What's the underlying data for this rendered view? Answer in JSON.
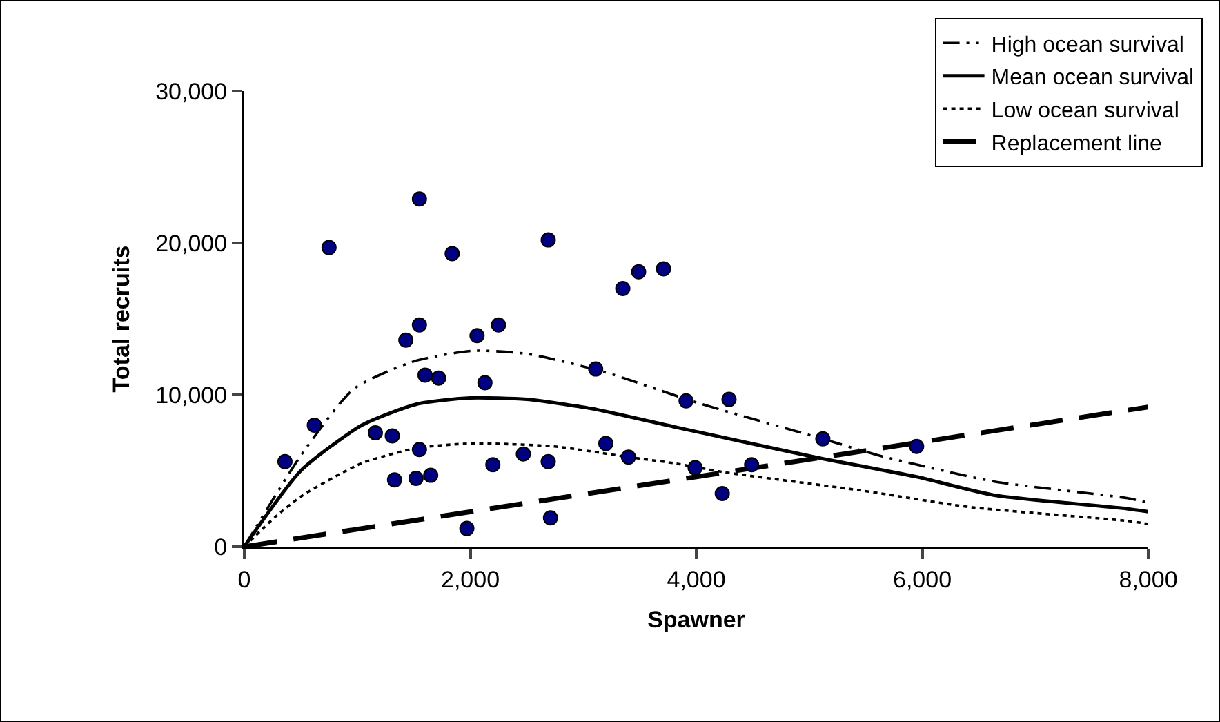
{
  "chart_data": {
    "type": "scatter",
    "xlabel": "Spawner",
    "ylabel": "Total recruits",
    "xlim": [
      0,
      8000
    ],
    "ylim": [
      0,
      30000
    ],
    "xticks": [
      0,
      {
        "value": 2000,
        "label": "2,000"
      },
      {
        "value": 4000,
        "label": "4,000"
      },
      {
        "value": 6000,
        "label": "6,000"
      },
      {
        "value": 8000,
        "label": "8,000"
      }
    ],
    "yticks": [
      0,
      {
        "value": 10000,
        "label": "10,000"
      },
      {
        "value": 20000,
        "label": "20,000"
      },
      {
        "value": 30000,
        "label": "30,000"
      }
    ],
    "grid": false,
    "legend": "top right",
    "series": [
      {
        "color": "#000080",
        "marker": "circle",
        "x": [
          360,
          620,
          750,
          1550,
          1840,
          2690,
          3350,
          3490,
          3710,
          1550,
          1430,
          2060,
          2250,
          1600,
          1720,
          2130,
          3110,
          1160,
          1310,
          1550,
          1330,
          1520,
          1650,
          2200,
          2470,
          2690,
          3200,
          3400,
          1970,
          2710,
          3910,
          4290,
          5120,
          5950,
          3990,
          4490,
          4230
        ],
        "values": [
          5600,
          8000,
          19700,
          22900,
          19300,
          20200,
          17000,
          18100,
          18300,
          14600,
          13600,
          13900,
          14600,
          11300,
          11100,
          10800,
          11700,
          7500,
          7300,
          6400,
          4400,
          4500,
          4700,
          5400,
          6100,
          5600,
          6800,
          5900,
          1200,
          1900,
          9600,
          9700,
          7100,
          6600,
          5200,
          5400,
          3500
        ]
      },
      {
        "type": "line",
        "name": "High ocean survival",
        "color": "#000000",
        "line_style": "dashdot",
        "x": [
          0,
          500,
          970,
          1500,
          2020,
          2500,
          3190,
          4000,
          5120,
          5620,
          6630,
          7810,
          8000
        ],
        "values": [
          0,
          6000,
          10400,
          12200,
          12900,
          12700,
          11500,
          9500,
          7100,
          6000,
          4300,
          3200,
          2900
        ]
      },
      {
        "type": "line",
        "name": "Mean ocean survival",
        "color": "#000000",
        "line_style": "solid",
        "x": [
          0,
          500,
          1040,
          1530,
          2000,
          2500,
          3070,
          3800,
          5050,
          5950,
          6630,
          7810,
          8000
        ],
        "values": [
          0,
          5000,
          8000,
          9400,
          9800,
          9700,
          9100,
          7900,
          5900,
          4600,
          3400,
          2500,
          2300
        ]
      },
      {
        "type": "line",
        "name": "Low ocean survival",
        "color": "#000000",
        "line_style": "dotted",
        "x": [
          0,
          280,
          520,
          1040,
          1530,
          2020,
          2750,
          3400,
          3800,
          4250,
          5460,
          6430,
          7810,
          8000
        ],
        "values": [
          0,
          2000,
          3400,
          5500,
          6500,
          6800,
          6600,
          5900,
          5500,
          4900,
          3700,
          2600,
          1700,
          1500
        ]
      },
      {
        "type": "line",
        "name": "Replacement line",
        "color": "#000000",
        "line_style": "dashed",
        "x": [
          0,
          8000
        ],
        "values": [
          0,
          9200
        ]
      }
    ]
  }
}
